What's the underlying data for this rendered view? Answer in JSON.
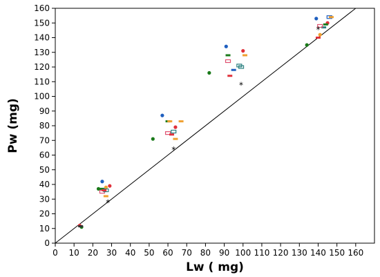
{
  "chart_data": {
    "type": "scatter",
    "title": "",
    "xlabel": "Lw ( mg)",
    "ylabel": "Pw (mg)",
    "xlim": [
      0,
      170
    ],
    "ylim": [
      0,
      160
    ],
    "xticks": [
      "0",
      "10",
      "20",
      "30",
      "40",
      "50",
      "60",
      "70",
      "80",
      "90",
      "100",
      "110",
      "120",
      "130",
      "140",
      "150",
      "160"
    ],
    "yticks": [
      "0",
      "10",
      "20",
      "30",
      "40",
      "50",
      "60",
      "70",
      "80",
      "90",
      "100",
      "110",
      "120",
      "130",
      "140",
      "150",
      "160"
    ],
    "grid": false,
    "legend": "none",
    "reference_line": {
      "type": "y=x",
      "color": "#000000"
    },
    "colors": {
      "blue": "#1f5fbf",
      "green": "#1a7a1a",
      "red": "#e0303a",
      "orange": "#f0a030",
      "teal": "#2a8080",
      "pink": "#e05070",
      "dark": "#333333"
    },
    "points": [
      {
        "x": 13,
        "y": 12,
        "color": "red",
        "shape": "circle"
      },
      {
        "x": 14,
        "y": 11,
        "color": "green",
        "shape": "circle"
      },
      {
        "x": 13.5,
        "y": 11.5,
        "color": "dark",
        "shape": "dash"
      },
      {
        "x": 25,
        "y": 42,
        "color": "blue",
        "shape": "circle"
      },
      {
        "x": 23,
        "y": 37,
        "color": "green",
        "shape": "circle"
      },
      {
        "x": 25,
        "y": 37,
        "color": "green",
        "shape": "dash"
      },
      {
        "x": 27,
        "y": 38,
        "color": "orange",
        "shape": "circle"
      },
      {
        "x": 29,
        "y": 39,
        "color": "red",
        "shape": "circle"
      },
      {
        "x": 25,
        "y": 35,
        "color": "pink",
        "shape": "open-rect"
      },
      {
        "x": 27,
        "y": 36,
        "color": "teal",
        "shape": "open-rect"
      },
      {
        "x": 26,
        "y": 36,
        "color": "red",
        "shape": "dash"
      },
      {
        "x": 27,
        "y": 32,
        "color": "orange",
        "shape": "dash"
      },
      {
        "x": 28,
        "y": 28,
        "color": "dark",
        "shape": "star"
      },
      {
        "x": 57,
        "y": 87,
        "color": "blue",
        "shape": "circle"
      },
      {
        "x": 52,
        "y": 71,
        "color": "green",
        "shape": "circle"
      },
      {
        "x": 60,
        "y": 83,
        "color": "green",
        "shape": "dash"
      },
      {
        "x": 61,
        "y": 83,
        "color": "orange",
        "shape": "dash"
      },
      {
        "x": 67,
        "y": 83,
        "color": "orange",
        "shape": "dash"
      },
      {
        "x": 64,
        "y": 79,
        "color": "red",
        "shape": "circle"
      },
      {
        "x": 60,
        "y": 75,
        "color": "pink",
        "shape": "open-rect"
      },
      {
        "x": 63,
        "y": 76,
        "color": "teal",
        "shape": "open-rect"
      },
      {
        "x": 62,
        "y": 74,
        "color": "red",
        "shape": "dash"
      },
      {
        "x": 64,
        "y": 71,
        "color": "orange",
        "shape": "dash"
      },
      {
        "x": 63,
        "y": 64,
        "color": "dark",
        "shape": "star"
      },
      {
        "x": 91,
        "y": 134,
        "color": "blue",
        "shape": "circle"
      },
      {
        "x": 82,
        "y": 116,
        "color": "green",
        "shape": "circle"
      },
      {
        "x": 92,
        "y": 128,
        "color": "green",
        "shape": "dash"
      },
      {
        "x": 100,
        "y": 131,
        "color": "red",
        "shape": "circle"
      },
      {
        "x": 101,
        "y": 128,
        "color": "orange",
        "shape": "dash"
      },
      {
        "x": 92,
        "y": 124,
        "color": "pink",
        "shape": "open-rect"
      },
      {
        "x": 98,
        "y": 121,
        "color": "teal",
        "shape": "open-rect"
      },
      {
        "x": 99,
        "y": 120,
        "color": "teal",
        "shape": "open-rect"
      },
      {
        "x": 95,
        "y": 118,
        "color": "blue",
        "shape": "dash"
      },
      {
        "x": 93,
        "y": 114,
        "color": "red",
        "shape": "dash"
      },
      {
        "x": 99,
        "y": 108,
        "color": "dark",
        "shape": "star"
      },
      {
        "x": 139,
        "y": 153,
        "color": "blue",
        "shape": "circle"
      },
      {
        "x": 134,
        "y": 135,
        "color": "green",
        "shape": "circle"
      },
      {
        "x": 146,
        "y": 154,
        "color": "blue",
        "shape": "open-rect"
      },
      {
        "x": 147,
        "y": 154,
        "color": "orange",
        "shape": "dash"
      },
      {
        "x": 145,
        "y": 150,
        "color": "red",
        "shape": "circle"
      },
      {
        "x": 144,
        "y": 149,
        "color": "green",
        "shape": "dash"
      },
      {
        "x": 143,
        "y": 147,
        "color": "teal",
        "shape": "dash"
      },
      {
        "x": 141,
        "y": 148,
        "color": "pink",
        "shape": "open-rect"
      },
      {
        "x": 141,
        "y": 142,
        "color": "orange",
        "shape": "circle"
      },
      {
        "x": 140,
        "y": 140,
        "color": "red",
        "shape": "dash"
      },
      {
        "x": 140,
        "y": 146,
        "color": "dark",
        "shape": "star"
      }
    ]
  }
}
